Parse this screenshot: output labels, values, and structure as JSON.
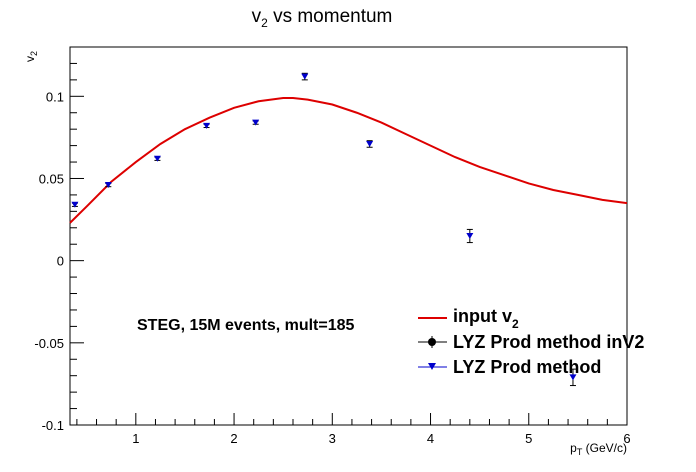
{
  "chart_data": {
    "type": "line",
    "title": "v",
    "title_sub": "2",
    "title_rest": " vs momentum",
    "ylabel": "v",
    "ylabel_sub": "2",
    "xlabel_main": "p",
    "xlabel_sub": "T",
    "xlabel_rest": " (GeV/c)",
    "xlim": [
      0.33,
      6.0
    ],
    "ylim": [
      -0.1,
      0.13
    ],
    "x_ticks": [
      1,
      2,
      3,
      4,
      5,
      6
    ],
    "x_tick_labels": [
      "1",
      "2",
      "3",
      "4",
      "5",
      "6"
    ],
    "y_ticks": [
      -0.1,
      -0.05,
      0,
      0.05,
      0.1
    ],
    "y_tick_labels": [
      "-0.1",
      "-0.05",
      "0",
      "0.05",
      "0.1"
    ],
    "annotation": "STEG, 15M events, mult=185",
    "legend_position": "bottom-right",
    "colors": {
      "input": "#dd0000",
      "prod": "#0000cc",
      "inv2": "#000000"
    },
    "series": [
      {
        "name": "input v",
        "name_sub": "2",
        "kind": "curve",
        "x": [
          0.33,
          0.5,
          0.75,
          1.0,
          1.25,
          1.5,
          1.75,
          2.0,
          2.25,
          2.5,
          2.6,
          2.75,
          3.0,
          3.25,
          3.5,
          3.75,
          4.0,
          4.25,
          4.5,
          4.75,
          5.0,
          5.25,
          5.5,
          5.75,
          6.0
        ],
        "y": [
          0.023,
          0.033,
          0.048,
          0.06,
          0.071,
          0.08,
          0.087,
          0.093,
          0.097,
          0.099,
          0.099,
          0.098,
          0.095,
          0.09,
          0.084,
          0.077,
          0.07,
          0.063,
          0.057,
          0.052,
          0.047,
          0.043,
          0.04,
          0.037,
          0.035
        ]
      },
      {
        "name": "LYZ Prod method inV2",
        "kind": "points",
        "marker": "circle",
        "x": [],
        "y": [],
        "err": []
      },
      {
        "name": "LYZ Prod method",
        "kind": "points",
        "marker": "triangle-down",
        "x": [
          0.38,
          0.72,
          1.22,
          1.72,
          2.22,
          2.72,
          3.38,
          4.4,
          5.45
        ],
        "y": [
          0.034,
          0.046,
          0.062,
          0.082,
          0.084,
          0.112,
          0.071,
          0.015,
          -0.071
        ],
        "err": [
          0.001,
          0.001,
          0.001,
          0.001,
          0.001,
          0.002,
          0.002,
          0.004,
          0.005
        ]
      }
    ]
  }
}
